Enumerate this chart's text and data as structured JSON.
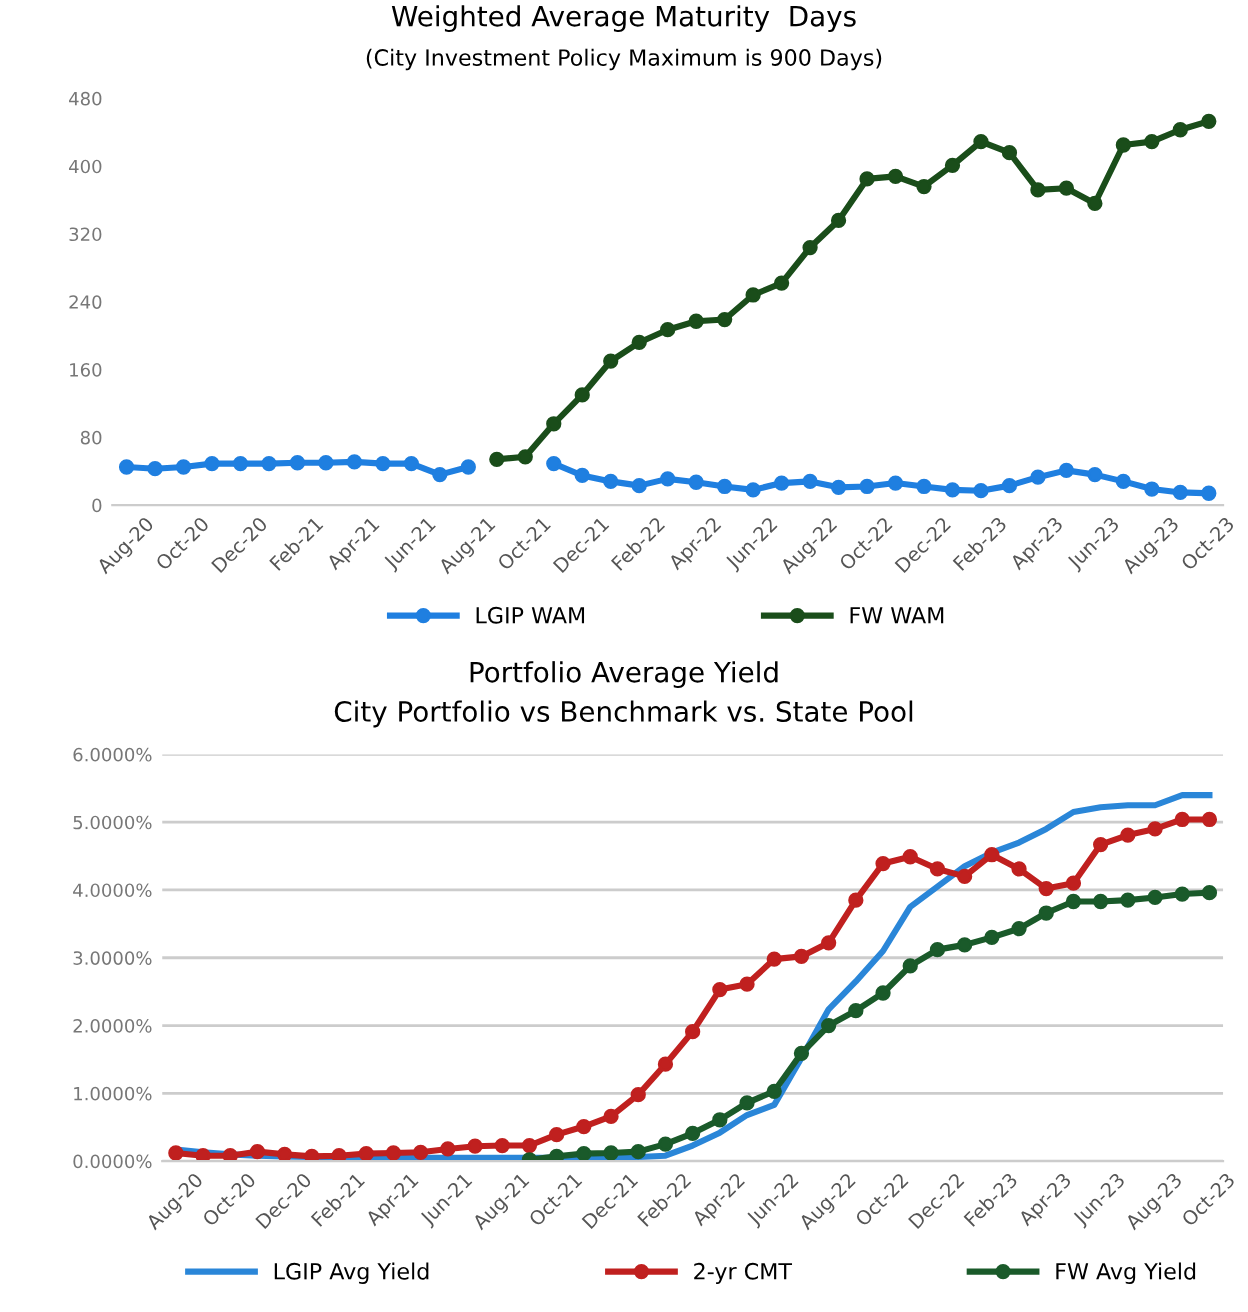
{
  "chart_data": [
    {
      "type": "line",
      "title": "Weighted Average Maturity  Days",
      "subtitle": "(City Investment Policy Maximum is 900 Days)",
      "categories": [
        "Aug-20",
        null,
        "Oct-20",
        null,
        "Dec-20",
        null,
        "Feb-21",
        null,
        "Apr-21",
        null,
        "Jun-21",
        null,
        "Aug-21",
        null,
        "Oct-21",
        null,
        "Dec-21",
        null,
        "Feb-22",
        null,
        "Apr-22",
        null,
        "Jun-22",
        null,
        "Aug-22",
        null,
        "Oct-22",
        null,
        "Dec-22",
        null,
        "Feb-23",
        null,
        "Apr-23",
        null,
        "Jun-23",
        null,
        "Aug-23",
        null,
        "Oct-23"
      ],
      "series": [
        {
          "name": "LGIP WAM",
          "color": "#1f7fe0",
          "marker": "circle",
          "values": [
            45,
            43,
            45,
            49,
            49,
            49,
            50,
            50,
            51,
            49,
            49,
            36,
            45,
            null,
            null,
            49,
            35,
            28,
            23,
            31,
            27,
            22,
            18,
            26,
            28,
            21,
            22,
            26,
            22,
            18,
            17,
            23,
            33,
            41,
            36,
            28,
            19,
            15,
            14
          ]
        },
        {
          "name": "FW WAM",
          "color": "#1a4d1a",
          "marker": "circle",
          "values": [
            null,
            null,
            null,
            null,
            null,
            null,
            null,
            null,
            null,
            null,
            null,
            null,
            null,
            54,
            57,
            96,
            130,
            170,
            192,
            207,
            217,
            219,
            248,
            262,
            304,
            336,
            385,
            388,
            376,
            401,
            429,
            416,
            372,
            374,
            356,
            425,
            429,
            443,
            453
          ]
        }
      ],
      "ylim": [
        0,
        480
      ],
      "yticks": [
        0,
        80,
        160,
        240,
        320,
        400,
        480
      ],
      "grid": false,
      "legend": "bottom",
      "line_style": "solid"
    },
    {
      "type": "line",
      "title": "Portfolio Average Yield",
      "subtitle": "City Portfolio vs Benchmark vs. State Pool",
      "categories": [
        "Aug-20",
        null,
        "Oct-20",
        null,
        "Dec-20",
        null,
        "Feb-21",
        null,
        "Apr-21",
        null,
        "Jun-21",
        null,
        "Aug-21",
        null,
        "Oct-21",
        null,
        "Dec-21",
        null,
        "Feb-22",
        null,
        "Apr-22",
        null,
        "Jun-22",
        null,
        "Aug-22",
        null,
        "Oct-22",
        null,
        "Dec-22",
        null,
        "Feb-23",
        null,
        "Apr-23",
        null,
        "Jun-23",
        null,
        "Aug-23",
        null,
        "Oct-23"
      ],
      "series": [
        {
          "name": "LGIP Avg Yield",
          "color": "#2a86d8",
          "marker": "none",
          "values": [
            0.17,
            0.13,
            0.1,
            0.08,
            0.07,
            0.06,
            0.05,
            0.05,
            0.05,
            0.05,
            0.05,
            0.05,
            0.05,
            0.05,
            0.05,
            0.05,
            0.05,
            0.06,
            0.08,
            0.23,
            0.42,
            0.68,
            0.83,
            1.52,
            2.24,
            2.65,
            3.1,
            3.75,
            4.05,
            4.35,
            4.55,
            4.7,
            4.9,
            5.15,
            5.22,
            5.25,
            5.25,
            5.4,
            5.4
          ]
        },
        {
          "name": "2-yr CMT",
          "color": "#c0201f",
          "marker": "circle",
          "values": [
            0.12,
            0.08,
            0.08,
            0.14,
            0.1,
            0.07,
            0.08,
            0.11,
            0.12,
            0.13,
            0.18,
            0.22,
            0.23,
            0.23,
            0.39,
            0.51,
            0.66,
            0.98,
            1.43,
            1.91,
            2.53,
            2.61,
            2.98,
            3.02,
            3.22,
            3.85,
            4.39,
            4.49,
            4.31,
            4.2,
            4.52,
            4.31,
            4.02,
            4.1,
            4.67,
            4.81,
            4.9,
            5.04,
            5.04
          ]
        },
        {
          "name": "FW Avg Yield",
          "color": "#1a5a2a",
          "marker": "circle",
          "values": [
            null,
            null,
            null,
            null,
            null,
            null,
            null,
            null,
            null,
            null,
            null,
            null,
            null,
            0.02,
            0.07,
            0.11,
            0.12,
            0.14,
            0.25,
            0.41,
            0.61,
            0.86,
            1.03,
            1.59,
            2.0,
            2.22,
            2.48,
            2.88,
            3.12,
            3.19,
            3.3,
            3.43,
            3.66,
            3.83,
            3.83,
            3.85,
            3.89,
            3.94,
            3.96
          ]
        }
      ],
      "ylim": [
        0,
        6
      ],
      "yticks": [
        {
          "value": 0,
          "label": "0.0000%"
        },
        {
          "value": 1,
          "label": "1.0000%"
        },
        {
          "value": 2,
          "label": "2.0000%"
        },
        {
          "value": 3,
          "label": "3.0000%"
        },
        {
          "value": 4,
          "label": "4.0000%"
        },
        {
          "value": 5,
          "label": "5.0000%"
        },
        {
          "value": 6,
          "label": "6.0000%"
        }
      ],
      "grid": "y",
      "legend": "bottom",
      "line_style": "solid"
    }
  ]
}
